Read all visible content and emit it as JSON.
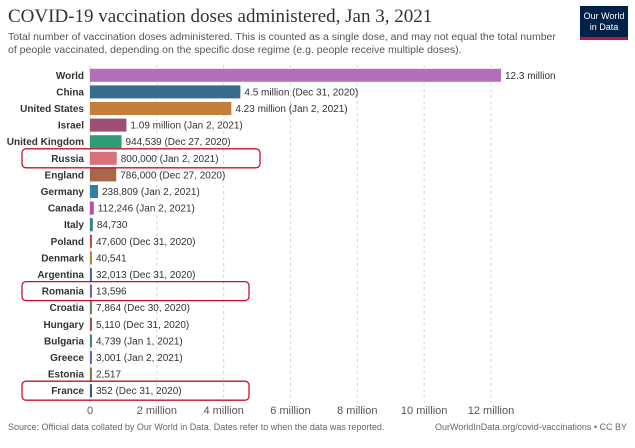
{
  "header": {
    "title": "COVID-19 vaccination doses administered, Jan 3, 2021",
    "subtitle": "Total number of vaccination doses administered. This is counted as a single dose, and may not equal the total number of people vaccinated, depending on the specific dose regime (e.g. people receive multiple doses).",
    "logo_line1": "Our World",
    "logo_line2": "in Data"
  },
  "footer": {
    "source": "Source: Official data collated by Our World in Data. Dates refer to when the data was reported.",
    "credit": "OurWorldInData.org/covid-vaccinations • CC BY"
  },
  "highlight_color": "#c8102e",
  "chart_data": {
    "type": "bar",
    "orientation": "horizontal",
    "xlim": [
      0,
      12300000
    ],
    "xticks": [
      0,
      2000000,
      4000000,
      6000000,
      8000000,
      10000000,
      12000000
    ],
    "xtick_labels": [
      "0",
      "2 million",
      "4 million",
      "6 million",
      "8 million",
      "10 million",
      "12 million"
    ],
    "grid": "vertical dashed",
    "highlighted": [
      "Russia",
      "Romania",
      "France"
    ],
    "bars": [
      {
        "category": "World",
        "value": 12300000,
        "label": "12.3 million",
        "color": "#b36fb8"
      },
      {
        "category": "China",
        "value": 4500000,
        "label": "4.5 million (Dec 31, 2020)",
        "color": "#3a6a8c"
      },
      {
        "category": "United States",
        "value": 4230000,
        "label": "4.23 million (Jan 2, 2021)",
        "color": "#c67f3a"
      },
      {
        "category": "Israel",
        "value": 1090000,
        "label": "1.09 million (Jan 2, 2021)",
        "color": "#9b4f74"
      },
      {
        "category": "United Kingdom",
        "value": 944539,
        "label": "944,539 (Dec 27, 2020)",
        "color": "#2e9c78"
      },
      {
        "category": "Russia",
        "value": 800000,
        "label": "800,000 (Jan 2, 2021)",
        "color": "#d9707e"
      },
      {
        "category": "England",
        "value": 786000,
        "label": "786,000 (Dec 27, 2020)",
        "color": "#a9674a"
      },
      {
        "category": "Germany",
        "value": 238809,
        "label": "238,809 (Jan 2, 2021)",
        "color": "#2f7fa6"
      },
      {
        "category": "Canada",
        "value": 112246,
        "label": "112,246 (Jan 2, 2021)",
        "color": "#b14fb0"
      },
      {
        "category": "Italy",
        "value": 84730,
        "label": "84,730",
        "color": "#3e7d8c"
      },
      {
        "category": "Poland",
        "value": 47600,
        "label": "47,600 (Dec 31, 2020)",
        "color": "#c64a4a"
      },
      {
        "category": "Denmark",
        "value": 40541,
        "label": "40,541",
        "color": "#b88a3a"
      },
      {
        "category": "Argentina",
        "value": 32013,
        "label": "32,013 (Dec 31, 2020)",
        "color": "#4f6aa6"
      },
      {
        "category": "Romania",
        "value": 13596,
        "label": "13,596",
        "color": "#8a5a9c"
      },
      {
        "category": "Croatia",
        "value": 7864,
        "label": "7,864 (Dec 30, 2020)",
        "color": "#5a8c5a"
      },
      {
        "category": "Hungary",
        "value": 5110,
        "label": "5,110 (Dec 31, 2020)",
        "color": "#a64f4f"
      },
      {
        "category": "Bulgaria",
        "value": 4739,
        "label": "4,739 (Jan 1, 2021)",
        "color": "#3a8c8c"
      },
      {
        "category": "Greece",
        "value": 3001,
        "label": "3,001 (Jan 2, 2021)",
        "color": "#6a6aa6"
      },
      {
        "category": "Estonia",
        "value": 2517,
        "label": "2,517",
        "color": "#8c7a3a"
      },
      {
        "category": "France",
        "value": 352,
        "label": "352 (Dec 31, 2020)",
        "color": "#3a5a8c"
      }
    ]
  }
}
